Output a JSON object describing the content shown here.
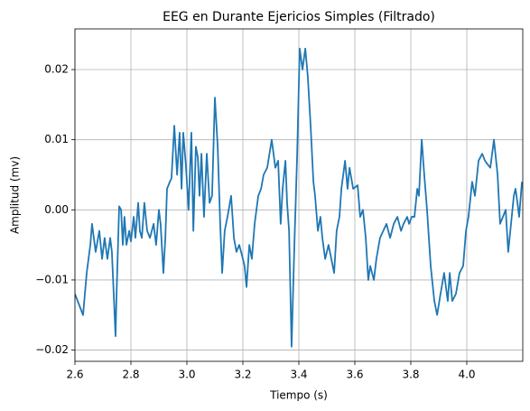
{
  "chart_data": {
    "type": "line",
    "title": "EEG en Durante Ejericios Simples (Filtrado)",
    "xlabel": "Tiempo (s)",
    "ylabel": "Amplitud (mv)",
    "xlim": [
      2.6,
      4.2
    ],
    "ylim": [
      -0.0216,
      0.0258
    ],
    "xticks": [
      2.6,
      2.8,
      {
        "value": 3.0,
        "label": "3.0"
      },
      3.2,
      3.4,
      3.6,
      3.8,
      {
        "value": 4.0,
        "label": "4.0"
      }
    ],
    "yticks": [
      {
        "value": -0.02,
        "label": "−0.02"
      },
      {
        "value": -0.01,
        "label": "−0.01"
      },
      {
        "value": 0,
        "label": "0.00"
      },
      0.01,
      0.02
    ],
    "grid": true,
    "x": [
      2.6,
      2.629,
      2.642,
      2.655,
      2.661,
      2.674,
      2.687,
      2.697,
      2.706,
      2.716,
      2.726,
      2.732,
      2.745,
      2.748,
      2.758,
      2.765,
      2.771,
      2.777,
      2.784,
      2.794,
      2.8,
      2.81,
      2.816,
      2.826,
      2.832,
      2.839,
      2.848,
      2.858,
      2.868,
      2.881,
      2.89,
      2.9,
      2.906,
      2.916,
      2.923,
      2.929,
      2.939,
      2.945,
      2.955,
      2.965,
      2.974,
      2.981,
      2.987,
      2.997,
      3.006,
      3.016,
      3.023,
      3.032,
      3.039,
      3.045,
      3.052,
      3.061,
      3.071,
      3.081,
      3.09,
      3.1,
      3.11,
      3.119,
      3.126,
      3.135,
      3.145,
      3.158,
      3.168,
      3.177,
      3.187,
      3.197,
      3.206,
      3.213,
      3.223,
      3.232,
      3.242,
      3.255,
      3.265,
      3.274,
      3.287,
      3.303,
      3.316,
      3.326,
      3.335,
      3.342,
      3.352,
      3.358,
      3.365,
      3.374,
      3.384,
      3.394,
      3.403,
      3.413,
      3.423,
      3.432,
      3.442,
      3.452,
      3.458,
      3.468,
      3.477,
      3.484,
      3.494,
      3.506,
      3.516,
      3.526,
      3.535,
      3.545,
      3.552,
      3.565,
      3.574,
      3.581,
      3.594,
      3.61,
      3.619,
      3.629,
      3.639,
      3.648,
      3.655,
      3.668,
      3.677,
      3.69,
      3.713,
      3.726,
      3.739,
      3.752,
      3.765,
      3.774,
      3.787,
      3.794,
      3.803,
      3.813,
      3.823,
      3.829,
      3.839,
      3.848,
      3.858,
      3.871,
      3.884,
      3.894,
      3.906,
      3.919,
      3.932,
      3.939,
      3.948,
      3.961,
      3.974,
      3.987,
      3.997,
      4.006,
      4.019,
      4.029,
      4.042,
      4.055,
      4.065,
      4.074,
      4.084,
      4.097,
      4.11,
      4.119,
      4.129,
      4.139,
      4.148,
      4.158,
      4.168,
      4.174,
      4.181,
      4.187,
      4.197
    ],
    "series": [
      {
        "name": "EEG",
        "color": "#1f77b4",
        "values": [
          -0.012,
          -0.015,
          -0.009,
          -0.005,
          -0.002,
          -0.006,
          -0.003,
          -0.007,
          -0.004,
          -0.007,
          -0.004,
          -0.006,
          -0.018,
          -0.013,
          0.0005,
          0.0,
          -0.005,
          -0.001,
          -0.005,
          -0.003,
          -0.0045,
          -0.001,
          -0.004,
          0.001,
          -0.003,
          -0.004,
          0.001,
          -0.003,
          -0.004,
          -0.002,
          -0.005,
          0.0,
          -0.002,
          -0.009,
          -0.004,
          0.003,
          0.004,
          0.0045,
          0.012,
          0.005,
          0.011,
          0.003,
          0.011,
          0.006,
          0.0,
          0.011,
          -0.003,
          0.009,
          0.0075,
          0.002,
          0.008,
          -0.001,
          0.008,
          0.001,
          0.002,
          0.016,
          0.009,
          -0.002,
          -0.009,
          -0.003,
          -0.001,
          0.002,
          -0.004,
          -0.006,
          -0.005,
          -0.0065,
          -0.008,
          -0.011,
          -0.005,
          -0.007,
          -0.002,
          0.002,
          0.003,
          0.005,
          0.006,
          0.01,
          0.006,
          0.007,
          -0.002,
          0.003,
          0.007,
          0.001,
          -0.003,
          -0.0195,
          -0.005,
          0.008,
          0.023,
          0.02,
          0.023,
          0.019,
          0.012,
          0.004,
          0.002,
          -0.003,
          -0.001,
          -0.004,
          -0.007,
          -0.005,
          -0.007,
          -0.009,
          -0.003,
          -0.001,
          0.003,
          0.007,
          0.003,
          0.006,
          0.003,
          0.0035,
          -0.001,
          0.0,
          -0.004,
          -0.01,
          -0.008,
          -0.01,
          -0.007,
          -0.004,
          -0.002,
          -0.004,
          -0.002,
          -0.001,
          -0.003,
          -0.002,
          -0.001,
          -0.002,
          -0.001,
          -0.001,
          0.003,
          0.002,
          0.01,
          0.005,
          0.0,
          -0.008,
          -0.013,
          -0.015,
          -0.012,
          -0.009,
          -0.013,
          -0.009,
          -0.013,
          -0.012,
          -0.009,
          -0.008,
          -0.003,
          -0.001,
          0.004,
          0.002,
          0.007,
          0.008,
          0.007,
          0.0065,
          0.006,
          0.01,
          0.005,
          -0.002,
          -0.001,
          0.0,
          -0.006,
          -0.002,
          0.002,
          0.003,
          0.001,
          -0.001,
          0.004
        ]
      }
    ]
  }
}
